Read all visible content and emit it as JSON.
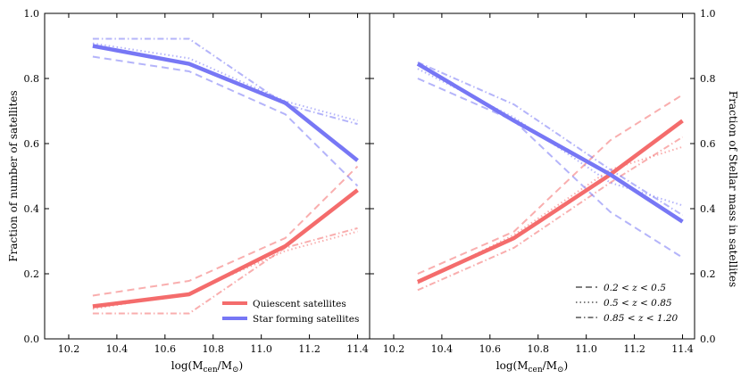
{
  "chart_data": [
    {
      "type": "line",
      "position": "left",
      "xlabel": "log(M_cen/M_⊙)",
      "ylabel": "Fraction of number of satellites",
      "xlim": [
        10.1,
        11.45
      ],
      "ylim": [
        0,
        1
      ],
      "xticks": [
        "10.2",
        "10.4",
        "10.6",
        "10.8",
        "11.0",
        "11.2",
        "11.4"
      ],
      "yticks": [
        "0.0",
        "0.2",
        "0.4",
        "0.6",
        "0.8",
        "1.0"
      ],
      "legend": {
        "placement": "lower-right",
        "entries": [
          {
            "label": "Quiescent satellites",
            "color": "#f46c6c"
          },
          {
            "label": "Star forming satellites",
            "color": "#7777f5"
          }
        ]
      },
      "series": [
        {
          "name": "Quiescent (all)",
          "color": "#f46c6c",
          "style": "solid",
          "x": [
            10.3,
            10.7,
            11.1,
            11.4
          ],
          "values": [
            0.1,
            0.137,
            0.285,
            0.457
          ]
        },
        {
          "name": "Quiescent 0.2<z<0.5",
          "color": "#f46c6c",
          "style": "dashed",
          "x": [
            10.3,
            10.7,
            11.1,
            11.4
          ],
          "values": [
            0.133,
            0.178,
            0.31,
            0.53
          ]
        },
        {
          "name": "Quiescent 0.5<z<0.85",
          "color": "#f46c6c",
          "style": "dotted",
          "x": [
            10.3,
            10.7,
            11.1,
            11.4
          ],
          "values": [
            0.092,
            0.14,
            0.27,
            0.33
          ]
        },
        {
          "name": "Quiescent 0.85<z<1.20",
          "color": "#f46c6c",
          "style": "dashdot",
          "x": [
            10.3,
            10.7,
            11.1,
            11.4
          ],
          "values": [
            0.078,
            0.078,
            0.28,
            0.34
          ]
        },
        {
          "name": "Star forming (all)",
          "color": "#7777f5",
          "style": "solid",
          "x": [
            10.3,
            10.7,
            11.1,
            11.4
          ],
          "values": [
            0.9,
            0.845,
            0.725,
            0.548
          ]
        },
        {
          "name": "Star forming 0.2<z<0.5",
          "color": "#7777f5",
          "style": "dashed",
          "x": [
            10.3,
            10.7,
            11.1,
            11.4
          ],
          "values": [
            0.867,
            0.822,
            0.69,
            0.47
          ]
        },
        {
          "name": "Star forming 0.5<z<0.85",
          "color": "#7777f5",
          "style": "dotted",
          "x": [
            10.3,
            10.7,
            11.1,
            11.4
          ],
          "values": [
            0.908,
            0.862,
            0.73,
            0.67
          ]
        },
        {
          "name": "Star forming 0.85<z<1.20",
          "color": "#7777f5",
          "style": "dashdot",
          "x": [
            10.3,
            10.7,
            11.1,
            11.4
          ],
          "values": [
            0.922,
            0.922,
            0.72,
            0.66
          ]
        }
      ]
    },
    {
      "type": "line",
      "position": "right",
      "xlabel": "log(M_cen/M_⊙)",
      "ylabel": "Fraction of Stellar mass in satellites",
      "xlim": [
        10.1,
        11.45
      ],
      "ylim": [
        0,
        1
      ],
      "xticks": [
        "10.2",
        "10.4",
        "10.6",
        "10.8",
        "11.0",
        "11.2",
        "11.4"
      ],
      "yticks": [
        "0.0",
        "0.2",
        "0.4",
        "0.6",
        "0.8",
        "1.0"
      ],
      "legend": {
        "placement": "lower-right",
        "entries": [
          {
            "label": "0.2 < z < 0.5",
            "style": "dashed",
            "color": "#7f7f7f"
          },
          {
            "label": "0.5 < z < 0.85",
            "style": "dotted",
            "color": "#7f7f7f"
          },
          {
            "label": "0.85 < z < 1.20",
            "style": "dashdot",
            "color": "#7f7f7f"
          }
        ]
      },
      "series": [
        {
          "name": "Quiescent (all)",
          "color": "#f46c6c",
          "style": "solid",
          "x": [
            10.3,
            10.7,
            11.1,
            11.4
          ],
          "values": [
            0.175,
            0.31,
            0.505,
            0.67
          ]
        },
        {
          "name": "Quiescent 0.2<z<0.5",
          "color": "#f46c6c",
          "style": "dashed",
          "x": [
            10.3,
            10.7,
            11.1,
            11.4
          ],
          "values": [
            0.2,
            0.33,
            0.61,
            0.75
          ]
        },
        {
          "name": "Quiescent 0.5<z<0.85",
          "color": "#f46c6c",
          "style": "dotted",
          "x": [
            10.3,
            10.7,
            11.1,
            11.4
          ],
          "values": [
            0.17,
            0.32,
            0.52,
            0.59
          ]
        },
        {
          "name": "Quiescent 0.85<z<1.20",
          "color": "#f46c6c",
          "style": "dashdot",
          "x": [
            10.3,
            10.7,
            11.1,
            11.4
          ],
          "values": [
            0.15,
            0.28,
            0.48,
            0.62
          ]
        },
        {
          "name": "Star forming (all)",
          "color": "#7777f5",
          "style": "solid",
          "x": [
            10.3,
            10.7,
            11.1,
            11.4
          ],
          "values": [
            0.845,
            0.67,
            0.505,
            0.36
          ]
        },
        {
          "name": "Star forming 0.2<z<0.5",
          "color": "#7777f5",
          "style": "dashed",
          "x": [
            10.3,
            10.7,
            11.1,
            11.4
          ],
          "values": [
            0.8,
            0.67,
            0.39,
            0.25
          ]
        },
        {
          "name": "Star forming 0.5<z<0.85",
          "color": "#7777f5",
          "style": "dotted",
          "x": [
            10.3,
            10.7,
            11.1,
            11.4
          ],
          "values": [
            0.83,
            0.68,
            0.48,
            0.41
          ]
        },
        {
          "name": "Star forming 0.85<z<1.20",
          "color": "#7777f5",
          "style": "dashdot",
          "x": [
            10.3,
            10.7,
            11.1,
            11.4
          ],
          "values": [
            0.85,
            0.72,
            0.52,
            0.38
          ]
        }
      ]
    }
  ]
}
